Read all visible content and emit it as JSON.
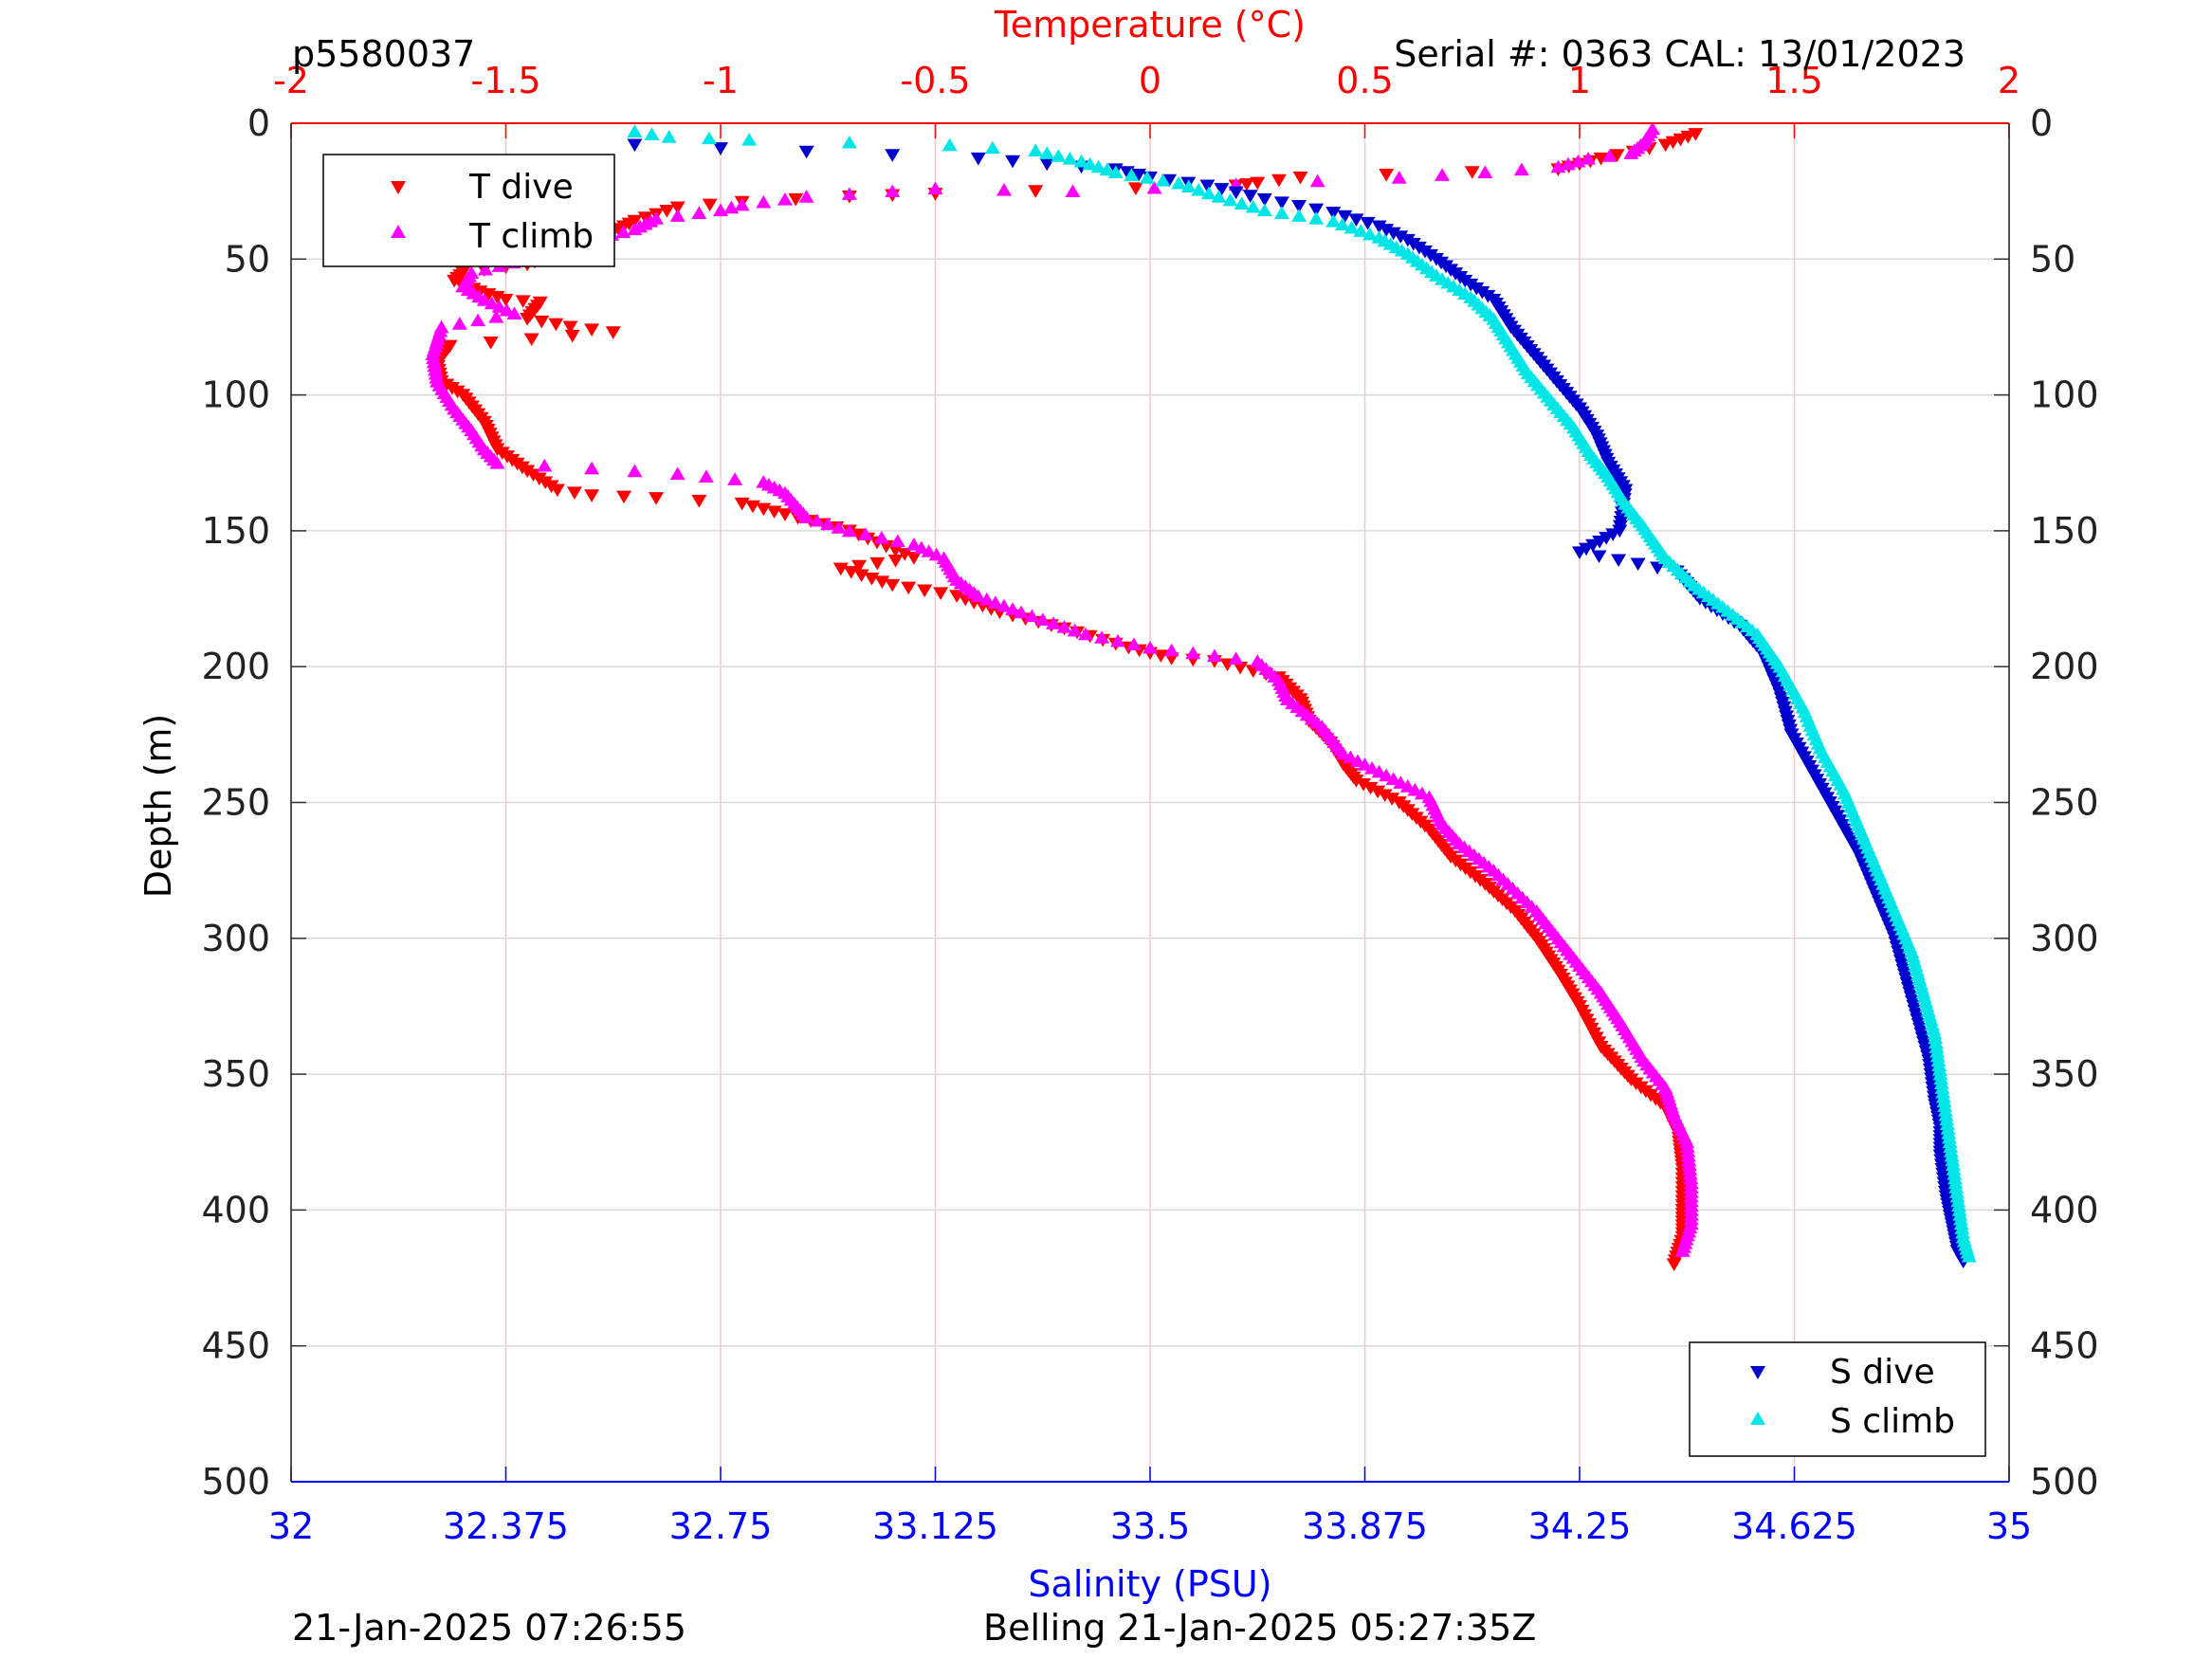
{
  "figure": {
    "top_left_text": "p5580037",
    "top_right_text": "Serial #: 0363  CAL: 13/01/2023",
    "bottom_left_text": "21-Jan-2025 07:26:55",
    "bottom_center_text": "Belling 21-Jan-2025 05:27:35Z"
  },
  "colors": {
    "temperature_axis": "#ff0000",
    "salinity_axis": "#0000ff",
    "t_dive": "#ff0000",
    "t_climb": "#ff00ff",
    "s_dive": "#0000cc",
    "s_climb": "#00e5e5",
    "grid_depth": "#d9d9d9",
    "grid_temp": "#f3c8c8"
  },
  "chart_data": {
    "type": "scatter",
    "ylabel": "Depth (m)",
    "ylim": [
      500,
      0
    ],
    "y_ticks": [
      0,
      50,
      100,
      150,
      200,
      250,
      300,
      350,
      400,
      450,
      500
    ],
    "temperature_axis": {
      "label": "Temperature (°C)",
      "range": [
        -2,
        2
      ],
      "ticks": [
        "-2",
        "-1.5",
        "-1",
        "-0.5",
        "0",
        "0.5",
        "1",
        "1.5",
        "2"
      ]
    },
    "salinity_axis": {
      "label": "Salinity (PSU)",
      "range": [
        32,
        35
      ],
      "ticks": [
        "32",
        "32.375",
        "32.75",
        "33.125",
        "33.5",
        "33.875",
        "34.25",
        "34.625",
        "35"
      ]
    },
    "grid": true,
    "legends": [
      {
        "placement": "top-left",
        "entries": [
          "T dive",
          "T climb"
        ]
      },
      {
        "placement": "bottom-right",
        "entries": [
          "S dive",
          "S climb"
        ]
      }
    ],
    "series": [
      {
        "name": "T dive",
        "axis": "temperature",
        "marker": "triangle-down",
        "color": "#ff0000",
        "points": [
          [
            1.27,
            4
          ],
          [
            1.2,
            8
          ],
          [
            1.05,
            13
          ],
          [
            0.95,
            17
          ],
          [
            0.35,
            20
          ],
          [
            0.25,
            22
          ],
          [
            0.2,
            23
          ],
          [
            -0.5,
            26
          ],
          [
            -0.7,
            27
          ],
          [
            -0.95,
            29
          ],
          [
            -1.1,
            31
          ],
          [
            -1.2,
            36
          ],
          [
            -1.25,
            40
          ],
          [
            -1.3,
            43
          ],
          [
            -1.38,
            48
          ],
          [
            -1.45,
            52
          ],
          [
            -1.6,
            55
          ],
          [
            -1.62,
            58
          ],
          [
            -1.56,
            62
          ],
          [
            -1.5,
            65
          ],
          [
            -1.42,
            66
          ],
          [
            -1.45,
            72
          ],
          [
            -1.35,
            75
          ],
          [
            -1.25,
            77
          ],
          [
            -1.63,
            82
          ],
          [
            -1.66,
            88
          ],
          [
            -1.65,
            95
          ],
          [
            -1.6,
            100
          ],
          [
            -1.55,
            110
          ],
          [
            -1.52,
            120
          ],
          [
            -1.45,
            128
          ],
          [
            -1.38,
            135
          ],
          [
            -1.3,
            137
          ],
          [
            -1.15,
            138
          ],
          [
            -0.95,
            140
          ],
          [
            -0.85,
            144
          ],
          [
            -0.7,
            150
          ],
          [
            -0.55,
            160
          ],
          [
            -0.72,
            164
          ],
          [
            -0.6,
            170
          ],
          [
            -0.45,
            174
          ],
          [
            -0.35,
            180
          ],
          [
            -0.2,
            186
          ],
          [
            -0.05,
            193
          ],
          [
            0.05,
            197
          ],
          [
            0.15,
            198
          ],
          [
            0.3,
            204
          ],
          [
            0.35,
            212
          ],
          [
            0.37,
            220
          ],
          [
            0.42,
            228
          ],
          [
            0.45,
            236
          ],
          [
            0.48,
            242
          ],
          [
            0.58,
            250
          ],
          [
            0.65,
            260
          ],
          [
            0.7,
            270
          ],
          [
            0.78,
            280
          ],
          [
            0.85,
            290
          ],
          [
            0.9,
            300
          ],
          [
            0.95,
            312
          ],
          [
            1.0,
            325
          ],
          [
            1.05,
            340
          ],
          [
            1.12,
            352
          ],
          [
            1.2,
            362
          ],
          [
            1.23,
            372
          ],
          [
            1.24,
            385
          ],
          [
            1.24,
            400
          ],
          [
            1.24,
            410
          ],
          [
            1.22,
            420
          ]
        ]
      },
      {
        "name": "T climb",
        "axis": "temperature",
        "marker": "triangle-up",
        "color": "#ff00ff",
        "points": [
          [
            1.17,
            2
          ],
          [
            1.15,
            7
          ],
          [
            1.12,
            11
          ],
          [
            1.02,
            13
          ],
          [
            0.95,
            16
          ],
          [
            0.78,
            18
          ],
          [
            0.58,
            20
          ],
          [
            -0.18,
            25
          ],
          [
            -0.5,
            24
          ],
          [
            -0.8,
            27
          ],
          [
            -0.95,
            30
          ],
          [
            -1.0,
            32
          ],
          [
            -1.15,
            35
          ],
          [
            -1.2,
            39
          ],
          [
            -1.28,
            42
          ],
          [
            -1.35,
            46
          ],
          [
            -1.45,
            50
          ],
          [
            -1.58,
            55
          ],
          [
            -1.6,
            60
          ],
          [
            -1.55,
            65
          ],
          [
            -1.48,
            70
          ],
          [
            -1.65,
            75
          ],
          [
            -1.67,
            85
          ],
          [
            -1.66,
            95
          ],
          [
            -1.62,
            105
          ],
          [
            -1.58,
            113
          ],
          [
            -1.55,
            120
          ],
          [
            -1.52,
            125
          ],
          [
            -1.3,
            127
          ],
          [
            -1.1,
            129
          ],
          [
            -0.9,
            132
          ],
          [
            -0.85,
            136
          ],
          [
            -0.8,
            145
          ],
          [
            -0.7,
            150
          ],
          [
            -0.55,
            155
          ],
          [
            -0.48,
            160
          ],
          [
            -0.45,
            168
          ],
          [
            -0.4,
            174
          ],
          [
            -0.3,
            180
          ],
          [
            -0.15,
            188
          ],
          [
            0.0,
            193
          ],
          [
            0.1,
            195
          ],
          [
            0.25,
            198
          ],
          [
            0.3,
            205
          ],
          [
            0.32,
            212
          ],
          [
            0.4,
            222
          ],
          [
            0.45,
            232
          ],
          [
            0.55,
            240
          ],
          [
            0.65,
            248
          ],
          [
            0.68,
            258
          ],
          [
            0.72,
            265
          ],
          [
            0.8,
            275
          ],
          [
            0.9,
            290
          ],
          [
            0.95,
            300
          ],
          [
            1.0,
            310
          ],
          [
            1.05,
            320
          ],
          [
            1.1,
            332
          ],
          [
            1.15,
            345
          ],
          [
            1.2,
            355
          ],
          [
            1.22,
            365
          ],
          [
            1.25,
            375
          ],
          [
            1.26,
            390
          ],
          [
            1.26,
            405
          ],
          [
            1.24,
            415
          ]
        ]
      },
      {
        "name": "S dive",
        "axis": "salinity",
        "marker": "triangle-down",
        "color": "#0000cc",
        "points": [
          [
            32.6,
            8
          ],
          [
            33.2,
            13
          ],
          [
            33.44,
            17
          ],
          [
            33.5,
            20
          ],
          [
            33.6,
            23
          ],
          [
            33.7,
            28
          ],
          [
            33.82,
            33
          ],
          [
            33.9,
            38
          ],
          [
            33.95,
            43
          ],
          [
            34.0,
            50
          ],
          [
            34.05,
            58
          ],
          [
            34.1,
            65
          ],
          [
            34.13,
            75
          ],
          [
            34.17,
            85
          ],
          [
            34.21,
            95
          ],
          [
            34.25,
            105
          ],
          [
            34.28,
            115
          ],
          [
            34.3,
            125
          ],
          [
            34.33,
            135
          ],
          [
            34.32,
            150
          ],
          [
            34.25,
            158
          ],
          [
            34.42,
            165
          ],
          [
            34.46,
            175
          ],
          [
            34.53,
            185
          ],
          [
            34.57,
            195
          ],
          [
            34.6,
            210
          ],
          [
            34.62,
            225
          ],
          [
            34.66,
            240
          ],
          [
            34.7,
            255
          ],
          [
            34.74,
            270
          ],
          [
            34.77,
            285
          ],
          [
            34.8,
            300
          ],
          [
            34.82,
            315
          ],
          [
            34.84,
            330
          ],
          [
            34.86,
            345
          ],
          [
            34.87,
            360
          ],
          [
            34.88,
            370
          ],
          [
            34.88,
            380
          ],
          [
            34.89,
            395
          ],
          [
            34.9,
            405
          ],
          [
            34.91,
            415
          ],
          [
            34.92,
            419
          ]
        ]
      },
      {
        "name": "S climb",
        "axis": "salinity",
        "marker": "triangle-up",
        "color": "#00e5e5",
        "points": [
          [
            32.6,
            3
          ],
          [
            32.66,
            5
          ],
          [
            32.8,
            6
          ],
          [
            33.15,
            8
          ],
          [
            33.3,
            10
          ],
          [
            33.38,
            14
          ],
          [
            33.44,
            18
          ],
          [
            33.55,
            22
          ],
          [
            33.62,
            27
          ],
          [
            33.7,
            32
          ],
          [
            33.82,
            36
          ],
          [
            33.9,
            42
          ],
          [
            33.95,
            48
          ],
          [
            34.0,
            56
          ],
          [
            34.06,
            64
          ],
          [
            34.1,
            72
          ],
          [
            34.13,
            82
          ],
          [
            34.16,
            92
          ],
          [
            34.2,
            102
          ],
          [
            34.24,
            112
          ],
          [
            34.27,
            122
          ],
          [
            34.3,
            130
          ],
          [
            34.33,
            140
          ],
          [
            34.36,
            148
          ],
          [
            34.4,
            160
          ],
          [
            34.45,
            170
          ],
          [
            34.5,
            178
          ],
          [
            34.56,
            188
          ],
          [
            34.6,
            200
          ],
          [
            34.64,
            215
          ],
          [
            34.67,
            230
          ],
          [
            34.71,
            245
          ],
          [
            34.74,
            260
          ],
          [
            34.77,
            275
          ],
          [
            34.8,
            290
          ],
          [
            34.83,
            305
          ],
          [
            34.85,
            320
          ],
          [
            34.87,
            335
          ],
          [
            34.88,
            350
          ],
          [
            34.89,
            365
          ],
          [
            34.9,
            380
          ],
          [
            34.91,
            395
          ],
          [
            34.92,
            410
          ],
          [
            34.93,
            417
          ]
        ]
      }
    ]
  }
}
